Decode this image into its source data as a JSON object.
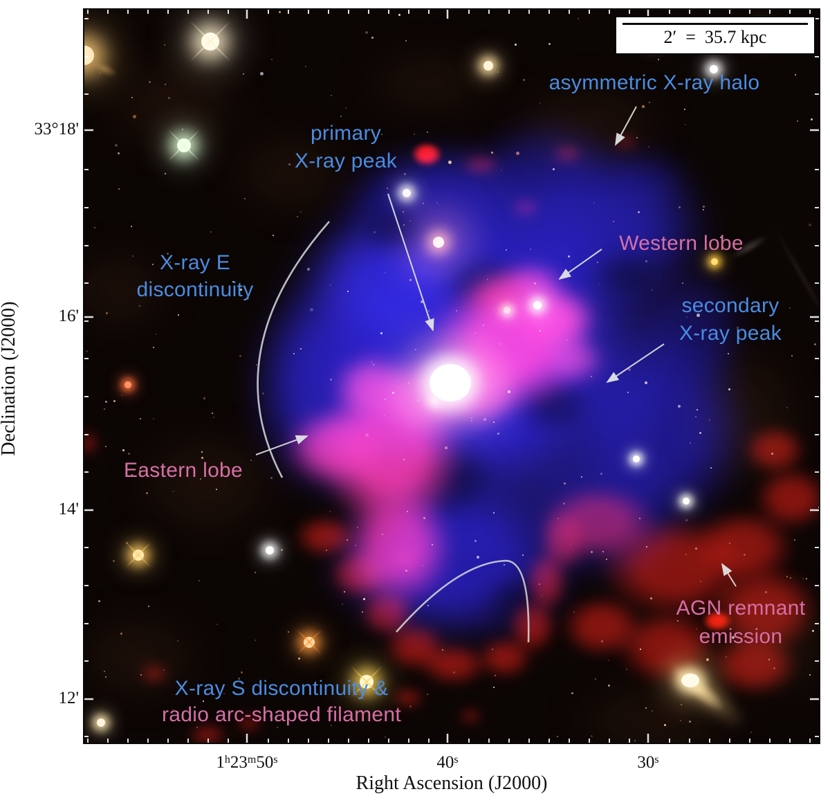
{
  "figure": {
    "scalebar": {
      "label": "2′  =  35.7 kpc"
    },
    "axes": {
      "y_title": "Declination (J2000)",
      "x_title": "Right Ascension (J2000)",
      "y_ticks": [
        "33°18'",
        "16'",
        "14'",
        "12'"
      ],
      "x_tick1": {
        "d1": "1",
        "s1": "h",
        "d2": "23",
        "s2": "m",
        "d3": "50",
        "s3": "s"
      },
      "x_tick2": {
        "d": "40",
        "s": "s"
      },
      "x_tick3": {
        "d": "30",
        "s": "s"
      }
    },
    "annotations": {
      "asymmetric_halo": "asymmetric X-ray halo",
      "primary_peak_line1": "primary",
      "primary_peak_line2": "X-ray peak",
      "e_discontinuity_line1": "X-ray E",
      "e_discontinuity_line2": "discontinuity",
      "eastern_lobe": "Eastern lobe",
      "western_lobe": "Western lobe",
      "secondary_peak_line1": "secondary",
      "secondary_peak_line2": "X-ray peak",
      "agn_line1": "AGN remnant",
      "agn_line2": "emission",
      "s_discontinuity_line1": "X-ray S discontinuity &",
      "s_discontinuity_line2": "radio arc-shaped filament"
    },
    "colors": {
      "xray-label": "#4a8ce0",
      "radio-label": "#d66fa6",
      "xray-halo": "#2622e1",
      "radio-lobe": "#ff2d7d",
      "remnant-red": "#cd1912",
      "annotation-line": "#dfe3e1"
    }
  }
}
